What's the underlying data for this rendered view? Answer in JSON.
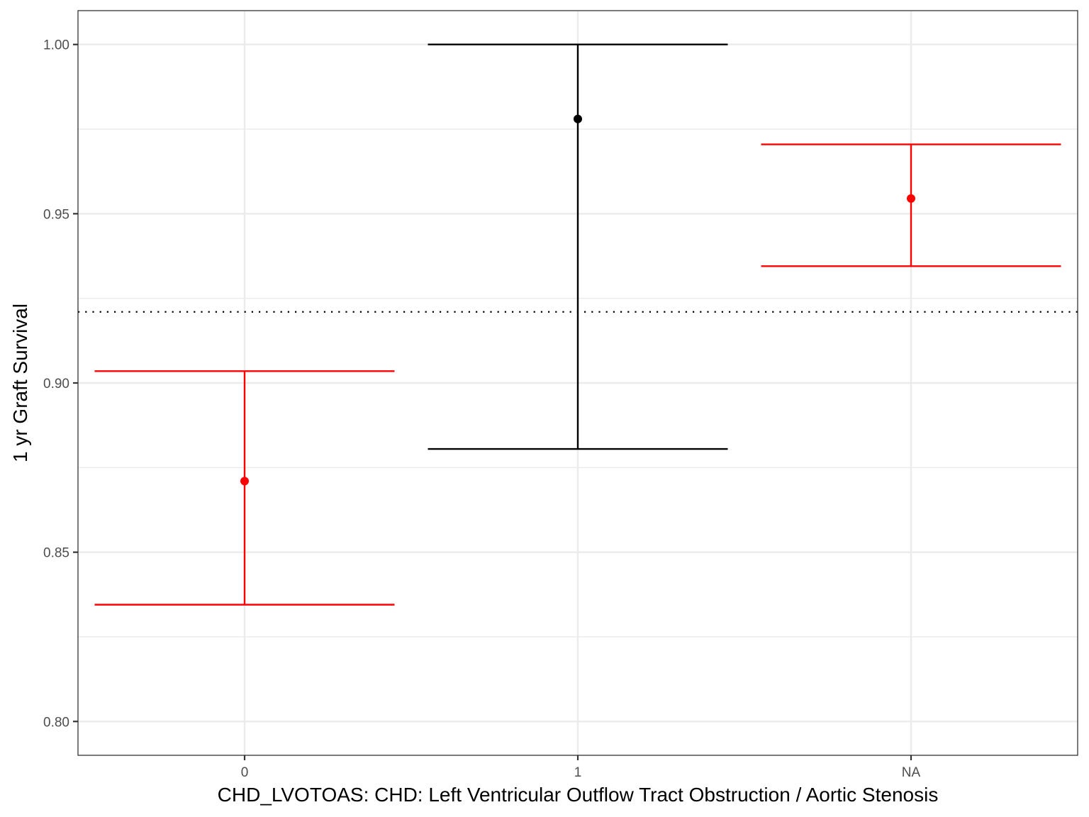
{
  "chart_data": {
    "type": "errorbar",
    "categories": [
      "0",
      "1",
      "NA"
    ],
    "series": [
      {
        "points": [
          {
            "category": "0",
            "estimate": 0.871,
            "lower": 0.8345,
            "upper": 0.9035,
            "color": "#ff0000"
          },
          {
            "category": "1",
            "estimate": 0.978,
            "lower": 0.8805,
            "upper": 1.0,
            "color": "#000000"
          },
          {
            "category": "NA",
            "estimate": 0.9545,
            "lower": 0.9345,
            "upper": 0.9705,
            "color": "#ff0000"
          }
        ]
      }
    ],
    "reference_line": {
      "value": 0.921,
      "style": "dotted",
      "color": "#000000"
    },
    "xlabel": "CHD_LVOTOAS: CHD: Left Ventricular Outflow Tract Obstruction / Aortic Stenosis",
    "ylabel": "1 yr Graft Survival",
    "ylim": [
      0.79,
      1.01
    ],
    "yticks": [
      0.8,
      0.85,
      0.9,
      0.95,
      1.0
    ],
    "ytick_labels": [
      "0.80",
      "0.85",
      "0.90",
      "0.95",
      "1.00"
    ],
    "grid": true,
    "colors": {
      "highlight": "#ff0000",
      "default": "#000000",
      "grid": "#ebebeb"
    }
  }
}
